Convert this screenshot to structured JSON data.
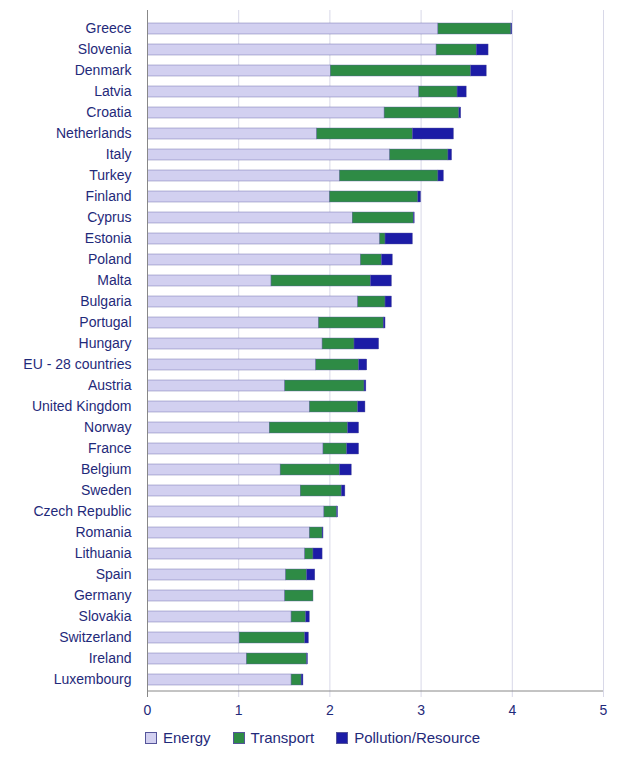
{
  "chart_data": {
    "type": "bar",
    "orientation": "horizontal",
    "stacked": true,
    "grid": true,
    "legend": "bottom",
    "categories": [
      "Greece",
      "Slovenia",
      "Denmark",
      "Latvia",
      "Croatia",
      "Netherlands",
      "Italy",
      "Turkey",
      "Finland",
      "Cyprus",
      "Estonia",
      "Poland",
      "Malta",
      "Bulgaria",
      "Portugal",
      "Hungary",
      "EU - 28 countries",
      "Austria",
      "United Kingdom",
      "Norway",
      "France",
      "Belgium",
      "Sweden",
      "Czech Republic",
      "Romania",
      "Lithuania",
      "Spain",
      "Germany",
      "Slovakia",
      "Switzerland",
      "Ireland",
      "Luxembourg"
    ],
    "series": [
      {
        "name": "Energy",
        "color": "#d2d0f0",
        "values": [
          3.19,
          3.17,
          2.01,
          2.98,
          2.6,
          1.86,
          2.66,
          2.11,
          2.0,
          2.25,
          2.55,
          2.34,
          1.36,
          2.31,
          1.88,
          1.92,
          1.85,
          1.51,
          1.78,
          1.34,
          1.93,
          1.46,
          1.68,
          1.94,
          1.78,
          1.73,
          1.52,
          1.51,
          1.58,
          1.01,
          1.09,
          1.58
        ]
      },
      {
        "name": "Transport",
        "color": "#2e8b45",
        "values": [
          0.8,
          0.44,
          1.54,
          0.42,
          0.82,
          1.05,
          0.64,
          1.08,
          0.97,
          0.67,
          0.06,
          0.23,
          1.09,
          0.3,
          0.71,
          0.35,
          0.47,
          0.87,
          0.53,
          0.86,
          0.26,
          0.65,
          0.45,
          0.14,
          0.14,
          0.09,
          0.23,
          0.31,
          0.16,
          0.72,
          0.66,
          0.11
        ]
      },
      {
        "name": "Pollution/Resource",
        "color": "#1c1ca6",
        "values": [
          0.01,
          0.13,
          0.17,
          0.1,
          0.02,
          0.45,
          0.04,
          0.06,
          0.03,
          0.01,
          0.3,
          0.12,
          0.23,
          0.07,
          0.02,
          0.27,
          0.09,
          0.02,
          0.08,
          0.12,
          0.13,
          0.13,
          0.04,
          0.01,
          0.01,
          0.1,
          0.09,
          0.0,
          0.04,
          0.04,
          0.01,
          0.02
        ]
      }
    ],
    "xlim": [
      0,
      5
    ],
    "xticks": [
      0,
      1,
      2,
      3,
      4,
      5
    ]
  }
}
